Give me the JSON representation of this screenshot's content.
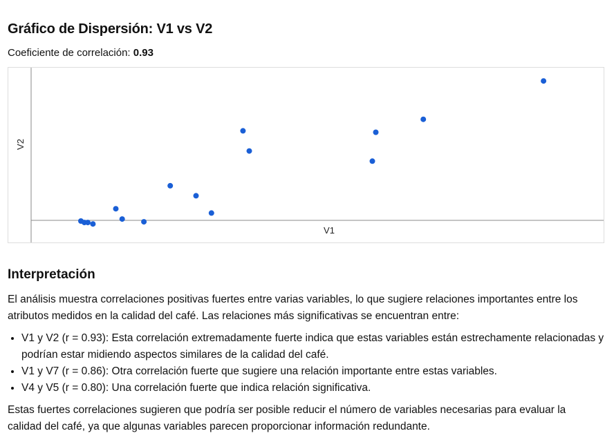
{
  "page": {
    "title": "Gráfico de Dispersión: V1 vs V2",
    "correlation_label": "Coeficiente de correlación: ",
    "correlation_value": "0.93"
  },
  "interpretation": {
    "heading": "Interpretación",
    "intro": "El análisis muestra correlaciones positivas fuertes entre varias variables, lo que sugiere relaciones importantes entre los atributos medidos en la calidad del café. Las relaciones más significativas se encuentran entre:",
    "items": [
      "V1 y V2 (r = 0.93): Esta correlación extremadamente fuerte indica que estas variables están estrechamente relacionadas y podrían estar midiendo aspectos similares de la calidad del café.",
      "V1 y V7 (r = 0.86): Otra correlación fuerte que sugiere una relación importante entre estas variables.",
      "V4 y V5 (r = 0.80): Una correlación fuerte que indica relación significativa."
    ],
    "closing": "Estas fuertes correlaciones sugieren que podría ser posible reducir el número de variables necesarias para evaluar la calidad del café, ya que algunas variables parecen proporcionar información redundante."
  },
  "chart_data": {
    "type": "scatter",
    "title": "Gráfico de Dispersión: V1 vs V2",
    "xlabel": "V1",
    "ylabel": "V2",
    "xlim": [
      0,
      100
    ],
    "ylim": [
      0,
      100
    ],
    "grid": false,
    "point_color": "#1a5fd6",
    "axis_color": "#888888",
    "points": [
      {
        "x": 8.7,
        "y": -0.5
      },
      {
        "x": 9.3,
        "y": -1.5
      },
      {
        "x": 9.9,
        "y": -1.5
      },
      {
        "x": 10.8,
        "y": -2.5
      },
      {
        "x": 14.8,
        "y": 8.1
      },
      {
        "x": 15.9,
        "y": 0.9
      },
      {
        "x": 19.7,
        "y": -1.0
      },
      {
        "x": 24.3,
        "y": 24.2
      },
      {
        "x": 28.8,
        "y": 17.2
      },
      {
        "x": 31.5,
        "y": 5.1
      },
      {
        "x": 37.0,
        "y": 62.6
      },
      {
        "x": 38.1,
        "y": 48.5
      },
      {
        "x": 59.6,
        "y": 41.4
      },
      {
        "x": 60.2,
        "y": 61.6
      },
      {
        "x": 68.5,
        "y": 70.7
      },
      {
        "x": 89.5,
        "y": 97.5
      }
    ]
  }
}
